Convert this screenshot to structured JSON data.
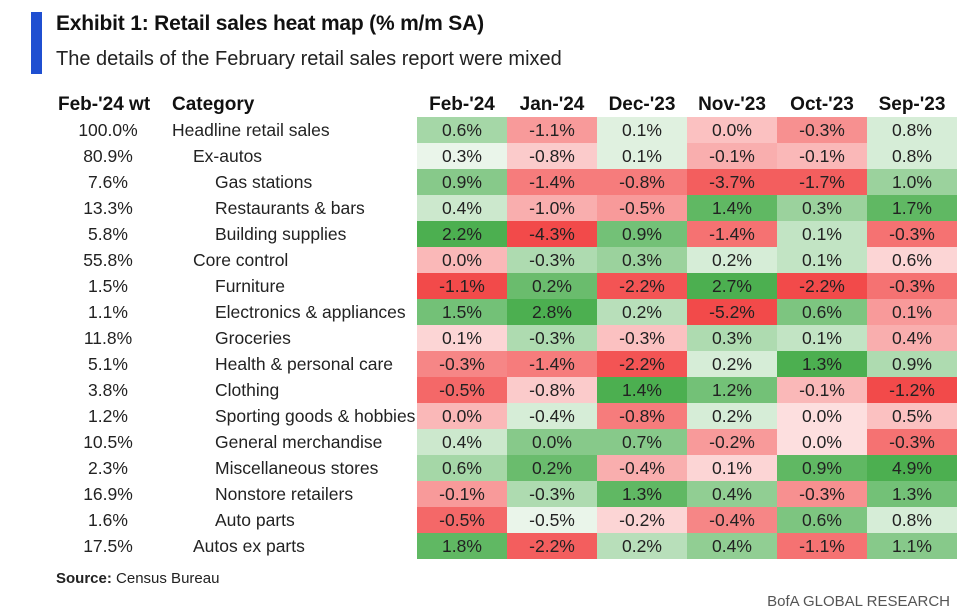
{
  "header": {
    "title": "Exhibit 1: Retail sales heat map (% m/m SA)",
    "subtitle": "The details of the February retail sales report were mixed"
  },
  "columns": {
    "weight_label": "Feb-'24 wt",
    "category_label": "Category",
    "months": [
      "Feb-'24",
      "Jan-'24",
      "Dec-'23",
      "Nov-'23",
      "Oct-'23",
      "Sep-'23"
    ]
  },
  "chart_data": {
    "type": "heatmap",
    "title": "Exhibit 1: Retail sales heat map (% m/m SA)",
    "subtitle": "The details of the February retail sales report were mixed",
    "unit": "% m/m SA",
    "columns": [
      "Feb-'24",
      "Jan-'24",
      "Dec-'23",
      "Nov-'23",
      "Oct-'23",
      "Sep-'23"
    ],
    "colors": {
      "positive": "#4caf50",
      "neutral": "#ffffff",
      "negative": "#f24a4a"
    },
    "rows": [
      {
        "weight": "100.0%",
        "category": "Headline retail sales",
        "indent": 0,
        "values": [
          0.6,
          -1.1,
          0.1,
          0.0,
          -0.3,
          0.8
        ]
      },
      {
        "weight": "80.9%",
        "category": "Ex-autos",
        "indent": 1,
        "values": [
          0.3,
          -0.8,
          0.1,
          -0.1,
          -0.1,
          0.8
        ]
      },
      {
        "weight": "7.6%",
        "category": "Gas stations",
        "indent": 2,
        "values": [
          0.9,
          -1.4,
          -0.8,
          -3.7,
          -1.7,
          1.0
        ]
      },
      {
        "weight": "13.3%",
        "category": "Restaurants & bars",
        "indent": 2,
        "values": [
          0.4,
          -1.0,
          -0.5,
          1.4,
          0.3,
          1.7
        ]
      },
      {
        "weight": "5.8%",
        "category": "Building supplies",
        "indent": 2,
        "values": [
          2.2,
          -4.3,
          0.9,
          -1.4,
          0.1,
          -0.3
        ]
      },
      {
        "weight": "55.8%",
        "category": "Core control",
        "indent": 1,
        "values": [
          0.0,
          -0.3,
          0.3,
          0.2,
          0.1,
          0.6
        ]
      },
      {
        "weight": "1.5%",
        "category": "Furniture",
        "indent": 2,
        "values": [
          -1.1,
          0.2,
          -2.2,
          2.7,
          -2.2,
          -0.3
        ]
      },
      {
        "weight": "1.1%",
        "category": "Electronics & appliances",
        "indent": 2,
        "values": [
          1.5,
          2.8,
          0.2,
          -5.2,
          0.6,
          0.1
        ]
      },
      {
        "weight": "11.8%",
        "category": "Groceries",
        "indent": 2,
        "values": [
          0.1,
          -0.3,
          -0.3,
          0.3,
          0.1,
          0.4
        ]
      },
      {
        "weight": "5.1%",
        "category": "Health & personal care",
        "indent": 2,
        "values": [
          -0.3,
          -1.4,
          -2.2,
          0.2,
          1.3,
          0.9
        ]
      },
      {
        "weight": "3.8%",
        "category": "Clothing",
        "indent": 2,
        "values": [
          -0.5,
          -0.8,
          1.4,
          1.2,
          -0.1,
          -1.2
        ]
      },
      {
        "weight": "1.2%",
        "category": "Sporting goods & hobbies",
        "indent": 2,
        "values": [
          0.0,
          -0.4,
          -0.8,
          0.2,
          0.0,
          0.5
        ]
      },
      {
        "weight": "10.5%",
        "category": "General merchandise",
        "indent": 2,
        "values": [
          0.4,
          0.0,
          0.7,
          -0.2,
          0.0,
          -0.3
        ]
      },
      {
        "weight": "2.3%",
        "category": "Miscellaneous stores",
        "indent": 2,
        "values": [
          0.6,
          0.2,
          -0.4,
          0.1,
          0.9,
          4.9
        ]
      },
      {
        "weight": "16.9%",
        "category": "Nonstore retailers",
        "indent": 2,
        "values": [
          -0.1,
          -0.3,
          1.3,
          0.4,
          -0.3,
          1.3
        ]
      },
      {
        "weight": "1.6%",
        "category": "Auto parts",
        "indent": 2,
        "values": [
          -0.5,
          -0.5,
          -0.2,
          -0.4,
          0.6,
          0.8
        ]
      },
      {
        "weight": "17.5%",
        "category": "Autos ex parts",
        "indent": 1,
        "values": [
          1.8,
          -2.2,
          0.2,
          0.4,
          -1.1,
          1.1
        ]
      }
    ]
  },
  "footer": {
    "source_label": "Source:",
    "source_text": "Census Bureau",
    "brand": "BofA GLOBAL RESEARCH"
  }
}
